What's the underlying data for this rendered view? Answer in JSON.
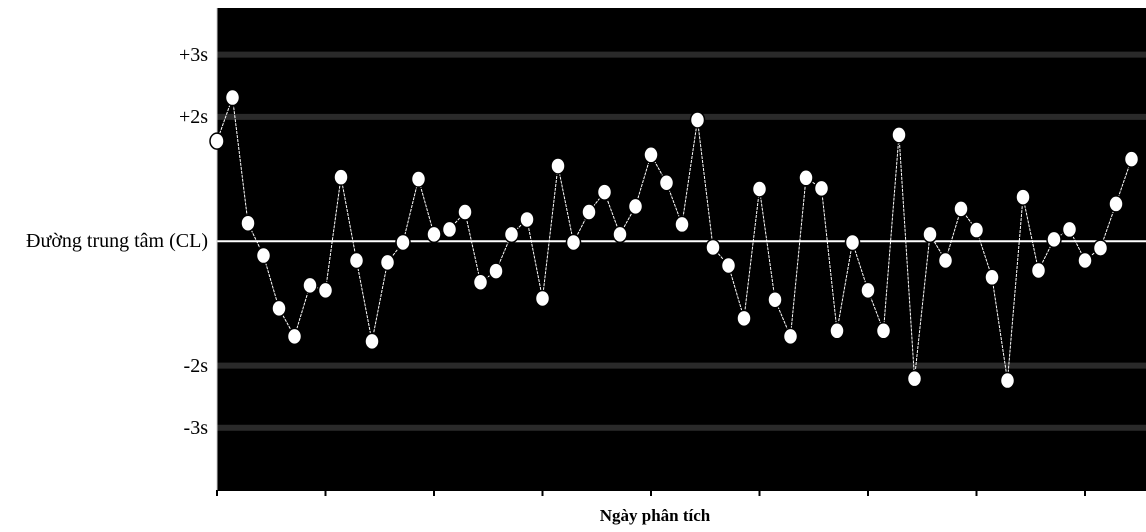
{
  "chart_data": {
    "type": "line",
    "x_label": "Ngày phân tích",
    "x": [
      1,
      2,
      3,
      4,
      5,
      6,
      7,
      8,
      9,
      10,
      11,
      12,
      13,
      14,
      15,
      16,
      17,
      18,
      19,
      20,
      21,
      22,
      23,
      24,
      25,
      26,
      27,
      28,
      29,
      30,
      31,
      32,
      33,
      34,
      35,
      36,
      37,
      38,
      39,
      40,
      41,
      42,
      43,
      44,
      45,
      46,
      47,
      48,
      49,
      50,
      51,
      52,
      53,
      54,
      55,
      56,
      57,
      58,
      59,
      60
    ],
    "series": [
      {
        "color": "#ffffff",
        "values": [
          1.61,
          2.31,
          0.29,
          -0.23,
          -1.08,
          -1.53,
          -0.71,
          -0.79,
          1.03,
          -0.31,
          -1.61,
          -0.34,
          -0.02,
          1.0,
          0.11,
          0.19,
          0.47,
          -0.66,
          -0.48,
          0.11,
          0.35,
          -0.92,
          1.21,
          -0.02,
          0.47,
          0.79,
          0.11,
          0.56,
          1.39,
          0.94,
          0.27,
          1.95,
          -0.1,
          -0.39,
          -1.24,
          0.84,
          -0.94,
          -1.53,
          1.02,
          0.85,
          -1.44,
          -0.02,
          -0.79,
          -1.44,
          1.71,
          -2.21,
          0.11,
          -0.31,
          0.52,
          0.18,
          -0.58,
          -2.24,
          0.71,
          -0.47,
          0.03,
          0.19,
          -0.31,
          -0.11,
          0.6,
          1.32
        ]
      }
    ],
    "xlim": [
      1,
      61
    ],
    "xticks": [
      1,
      8,
      15,
      22,
      29,
      36,
      43,
      50,
      57
    ],
    "ylim": [
      -4,
      3.75
    ],
    "yticks": [
      {
        "value": 3,
        "label": "+3s"
      },
      {
        "value": 2,
        "label": "+2s"
      },
      {
        "value": 0,
        "label": "Đường trung tâm (CL)"
      },
      {
        "value": -2,
        "label": "-2s"
      },
      {
        "value": -3,
        "label": "-3s"
      }
    ],
    "background": "#000000",
    "center_line_color": "#ffffff",
    "limit_line_color": "#2a2a2a"
  }
}
